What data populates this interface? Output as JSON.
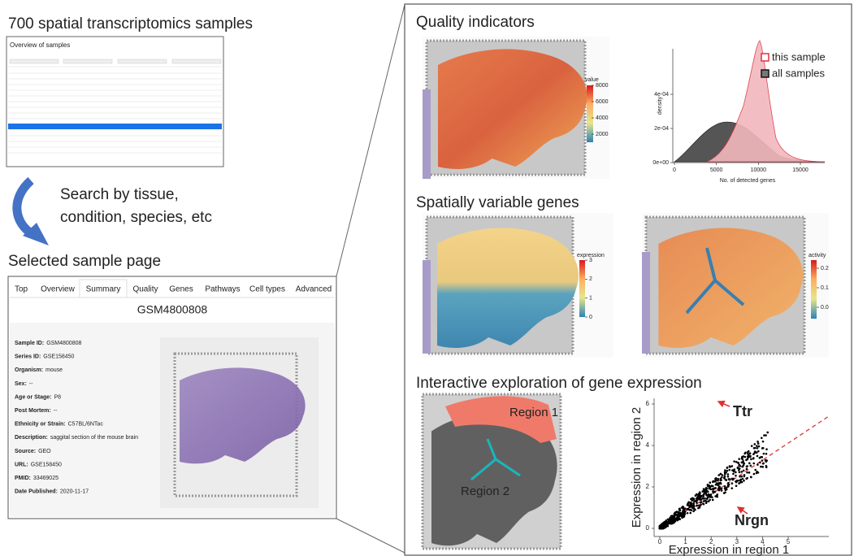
{
  "left": {
    "title": "700 spatial transcriptomics samples",
    "table_title": "Overview of samples",
    "search_text": [
      "Search by tissue,",
      "condition, species, etc"
    ],
    "page_title": "Selected sample page",
    "tabs": [
      "Top",
      "Overview",
      "Summary",
      "Quality",
      "Genes",
      "Pathways",
      "Cell types",
      "Advanced"
    ],
    "accession": "GSM4800808",
    "fields": [
      {
        "label": "Sample ID:",
        "value": "GSM4800808"
      },
      {
        "label": "Series ID:",
        "value": "GSE158450"
      },
      {
        "label": "Organism:",
        "value": "mouse"
      },
      {
        "label": "Sex:",
        "value": "--"
      },
      {
        "label": "Age or Stage:",
        "value": "P8"
      },
      {
        "label": "Post Mortem:",
        "value": "--"
      },
      {
        "label": "Ethnicity or Strain:",
        "value": "C57BL/6NTac"
      },
      {
        "label": "Description:",
        "value": "saggital section of the mouse brain"
      },
      {
        "label": "Source:",
        "value": "GEO"
      },
      {
        "label": "URL:",
        "value": "GSE158450"
      },
      {
        "label": "PMID:",
        "value": "33469025"
      },
      {
        "label": "Date Published:",
        "value": "2020-11-17"
      }
    ]
  },
  "right": {
    "quality": {
      "title": "Quality indicators",
      "colorbar": {
        "title": "value",
        "ticks": [
          8000,
          6000,
          4000,
          2000
        ]
      },
      "histogram": {
        "legend": [
          "this sample",
          "all samples"
        ],
        "y_label": "density",
        "yticks": [
          {
            "value": 0.0004,
            "label": "4e-04"
          },
          {
            "value": 0.0002,
            "label": "2e-04"
          },
          {
            "value": 0,
            "label": "0e+00"
          }
        ],
        "xticks": [
          0,
          5000,
          10000,
          15000
        ],
        "x_label": "No. of detected genes"
      }
    },
    "genes": {
      "title": "Spatially variable genes",
      "colorbars": [
        {
          "title": "expression",
          "ticks": [
            3,
            2,
            1,
            0
          ]
        },
        {
          "title": "activity",
          "ticks": [
            0.2,
            0.1,
            {
              "value": 0,
              "label": "0.0"
            }
          ]
        }
      ]
    },
    "interactive": {
      "title": "Interactive exploration of gene expression",
      "regions": [
        "Region 1",
        "Region 2"
      ],
      "scatter": {
        "x_label": "Expression in region 1",
        "y_label": "Expression in region 2",
        "xticks": [
          0,
          1,
          2,
          3,
          4,
          5
        ],
        "yticks": [
          0,
          2,
          4,
          6
        ],
        "annotations": [
          "Ttr",
          "Nrgn"
        ]
      }
    }
  }
}
